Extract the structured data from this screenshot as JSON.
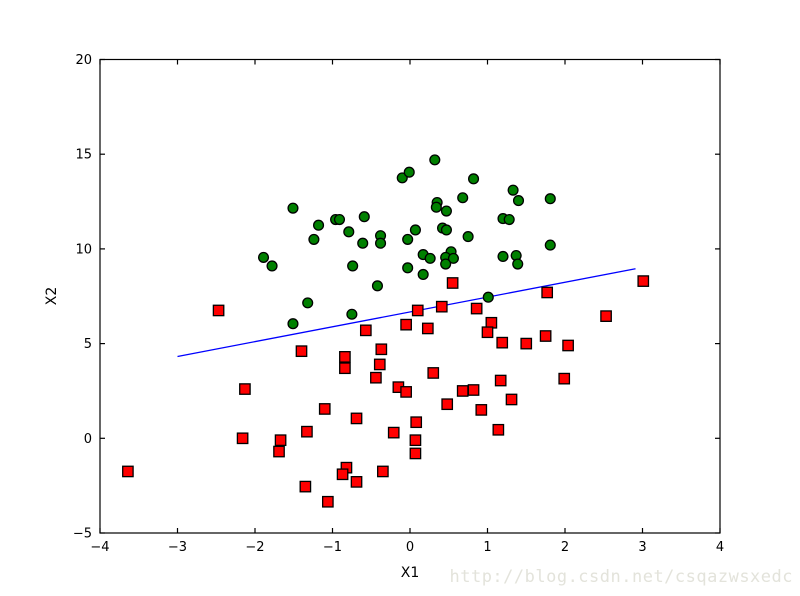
{
  "figure": {
    "background": "#ffffff",
    "frame_color": "#000000"
  },
  "watermark": {
    "text": "http://blog.csdn.net/csqazwsxedc",
    "color": "#e3e3db"
  },
  "chart_data": {
    "type": "scatter",
    "title": "",
    "xlabel": "X1",
    "ylabel": "X2",
    "xlim": [
      -4,
      4
    ],
    "ylim": [
      -5,
      20
    ],
    "x_ticks": [
      -4,
      -3,
      -2,
      -1,
      0,
      1,
      2,
      3,
      4
    ],
    "y_ticks": [
      -5,
      0,
      5,
      10,
      15,
      20
    ],
    "grid": false,
    "legend_position": "none",
    "series": [
      {
        "name": "class-positive-green-circles",
        "marker": "circle",
        "fill_color": "#008000",
        "edge_color": "#000000",
        "points": [
          [
            -0.1,
            13.75
          ],
          [
            -0.01,
            14.05
          ],
          [
            0.32,
            14.7
          ],
          [
            0.82,
            13.7
          ],
          [
            -1.51,
            12.15
          ],
          [
            0.68,
            12.7
          ],
          [
            0.35,
            12.45
          ],
          [
            0.34,
            12.2
          ],
          [
            0.47,
            12.0
          ],
          [
            1.33,
            13.1
          ],
          [
            1.4,
            12.55
          ],
          [
            1.81,
            12.65
          ],
          [
            -1.18,
            11.25
          ],
          [
            -0.96,
            11.55
          ],
          [
            -0.91,
            11.55
          ],
          [
            -0.79,
            10.9
          ],
          [
            -0.59,
            11.7
          ],
          [
            -1.24,
            10.5
          ],
          [
            -0.61,
            10.3
          ],
          [
            -0.38,
            10.7
          ],
          [
            -0.38,
            10.3
          ],
          [
            0.07,
            11.0
          ],
          [
            -0.03,
            10.5
          ],
          [
            1.2,
            11.6
          ],
          [
            1.28,
            11.55
          ],
          [
            0.42,
            11.1
          ],
          [
            0.47,
            11.0
          ],
          [
            0.75,
            10.65
          ],
          [
            1.81,
            10.2
          ],
          [
            -1.89,
            9.55
          ],
          [
            -1.78,
            9.1
          ],
          [
            0.53,
            9.85
          ],
          [
            0.17,
            9.7
          ],
          [
            0.26,
            9.5
          ],
          [
            0.46,
            9.55
          ],
          [
            0.56,
            9.5
          ],
          [
            0.46,
            9.2
          ],
          [
            -0.74,
            9.1
          ],
          [
            -0.03,
            9.0
          ],
          [
            1.2,
            9.6
          ],
          [
            1.37,
            9.65
          ],
          [
            1.39,
            9.2
          ],
          [
            -0.42,
            8.05
          ],
          [
            0.17,
            8.65
          ],
          [
            -1.32,
            7.15
          ],
          [
            -0.75,
            6.55
          ],
          [
            -1.51,
            6.05
          ],
          [
            1.01,
            7.45
          ]
        ]
      },
      {
        "name": "class-negative-red-squares",
        "marker": "square",
        "fill_color": "#ff0000",
        "edge_color": "#000000",
        "points": [
          [
            -2.47,
            6.75
          ],
          [
            0.1,
            6.75
          ],
          [
            -0.05,
            6.0
          ],
          [
            -0.57,
            5.7
          ],
          [
            0.55,
            8.2
          ],
          [
            0.41,
            6.95
          ],
          [
            0.86,
            6.85
          ],
          [
            1.05,
            6.1
          ],
          [
            1.0,
            5.6
          ],
          [
            1.77,
            7.7
          ],
          [
            3.01,
            8.3
          ],
          [
            2.53,
            6.45
          ],
          [
            0.23,
            5.8
          ],
          [
            1.75,
            5.4
          ],
          [
            -1.4,
            4.6
          ],
          [
            -0.84,
            4.3
          ],
          [
            -0.84,
            3.7
          ],
          [
            -0.37,
            4.7
          ],
          [
            -0.39,
            3.9
          ],
          [
            -0.44,
            3.2
          ],
          [
            -0.15,
            2.7
          ],
          [
            -0.05,
            2.45
          ],
          [
            -2.13,
            2.6
          ],
          [
            -1.1,
            1.55
          ],
          [
            -0.69,
            1.05
          ],
          [
            -0.21,
            0.3
          ],
          [
            -1.33,
            0.35
          ],
          [
            -2.16,
            0.0
          ],
          [
            -1.67,
            -0.1
          ],
          [
            -1.69,
            -0.7
          ],
          [
            -3.64,
            -1.75
          ],
          [
            -0.82,
            -1.55
          ],
          [
            -0.87,
            -1.9
          ],
          [
            -0.69,
            -2.3
          ],
          [
            -0.35,
            -1.75
          ],
          [
            -1.35,
            -2.55
          ],
          [
            -1.06,
            -3.35
          ],
          [
            1.19,
            5.05
          ],
          [
            1.5,
            5.0
          ],
          [
            2.04,
            4.9
          ],
          [
            0.3,
            3.45
          ],
          [
            0.68,
            2.5
          ],
          [
            0.82,
            2.55
          ],
          [
            0.48,
            1.8
          ],
          [
            1.17,
            3.05
          ],
          [
            1.99,
            3.15
          ],
          [
            1.31,
            2.05
          ],
          [
            0.92,
            1.5
          ],
          [
            1.14,
            0.45
          ],
          [
            0.08,
            0.85
          ],
          [
            0.07,
            -0.1
          ],
          [
            0.07,
            -0.8
          ]
        ]
      }
    ],
    "boundary_line": {
      "name": "decision-boundary",
      "color": "#0000ff",
      "x": [
        -3.0,
        2.91
      ],
      "y": [
        4.32,
        8.95
      ]
    }
  }
}
